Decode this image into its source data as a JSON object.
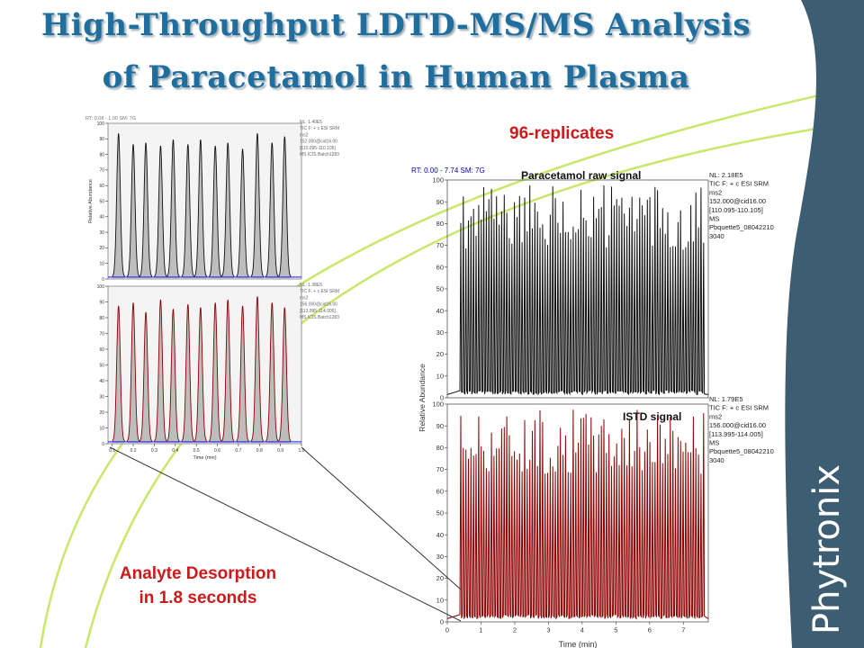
{
  "slide": {
    "title_line1": "High-Throughput LDTD-MS/MS Analysis",
    "title_line2": "of Paracetamol in Human Plasma",
    "replicates_label": "96-replicates",
    "desorption_line1": "Analyte Desorption",
    "desorption_line2": "in 1.8 seconds",
    "brand": "Phytronix",
    "colors": {
      "title": "#1f6e9e",
      "accent_red": "#cc1a1a",
      "brand_panel": "#3d5d73",
      "arc": "#c8e86a",
      "analyte": "#111111",
      "istd": "#8b0000"
    }
  },
  "chart_data": [
    {
      "type": "line",
      "panel": "left-top",
      "header": "RT: 0.08 - 1.00   SM: 7G",
      "info": [
        "NL: 1.40E5",
        "TIC F: + c ESI SRM",
        "ms2",
        "152.000@cid16.00",
        "[110.095-110.105]",
        "MS ICIS Batch1283"
      ],
      "ylabel": "Relative Abundance",
      "ylim": [
        0,
        100
      ],
      "yticks": [
        "0",
        "10",
        "20",
        "30",
        "40",
        "50",
        "60",
        "70",
        "80",
        "90",
        "100"
      ],
      "peaks_rt": [
        0.13,
        0.2,
        0.26,
        0.33,
        0.39,
        0.46,
        0.52,
        0.59,
        0.65,
        0.72,
        0.79,
        0.86,
        0.92
      ],
      "peaks_height": [
        92,
        85,
        86,
        84,
        88,
        85,
        88,
        84,
        86,
        82,
        92,
        86,
        90
      ]
    },
    {
      "type": "line",
      "panel": "left-bottom",
      "info": [
        "NL: 1.38E5",
        "TIC F: + c ESI SRM",
        "ms2",
        "156.000@cid16.00",
        "[113.995-114.005]",
        "MS ICIS Batch1283"
      ],
      "xlabel": "Time (min)",
      "ylim": [
        0,
        100
      ],
      "xlim": [
        0.1,
        1.0
      ],
      "yticks": [
        "0",
        "10",
        "20",
        "30",
        "40",
        "50",
        "60",
        "70",
        "80",
        "90",
        "100"
      ],
      "xticks": [
        "0.1",
        "0.2",
        "0.3",
        "0.4",
        "0.5",
        "0.6",
        "0.7",
        "0.8",
        "0.9",
        "1.0"
      ],
      "peaks_rt": [
        0.13,
        0.2,
        0.26,
        0.33,
        0.39,
        0.46,
        0.52,
        0.59,
        0.65,
        0.72,
        0.79,
        0.86,
        0.92
      ],
      "peaks_height": [
        86,
        88,
        82,
        90,
        84,
        87,
        85,
        88,
        90,
        86,
        92,
        88,
        85
      ]
    },
    {
      "type": "line",
      "panel": "right-top",
      "header": "RT: 0.00 - 7.74   SM: 7G",
      "signal_label": "Paracetamol raw signal",
      "info": [
        "NL: 2.18E5",
        "TIC F: + c ESI SRM",
        "ms2",
        "152.000@cid16.00",
        "[110.095-110.105]",
        "MS",
        "Pbquette5_08042210",
        "3040"
      ],
      "ylabel": "Relative Abundance",
      "ylim": [
        0,
        100
      ],
      "yticks": [
        "0",
        "10",
        "20",
        "30",
        "40",
        "50",
        "60",
        "70",
        "80",
        "90",
        "100"
      ],
      "replicates": 96,
      "rt_start": 0.4,
      "rt_end": 7.6
    },
    {
      "type": "line",
      "panel": "right-bottom",
      "signal_label": "ISTD signal",
      "info": [
        "NL: 1.79E5",
        "TIC F: + c ESI SRM",
        "ms2",
        "156.000@cid16.00",
        "[113.995-114.005]",
        "MS",
        "Pbquette5_08042210",
        "3040"
      ],
      "xlabel": "Time (min)",
      "ylim": [
        0,
        100
      ],
      "xlim": [
        0,
        7.74
      ],
      "yticks": [
        "0",
        "10",
        "20",
        "30",
        "40",
        "50",
        "60",
        "70",
        "80",
        "90",
        "100"
      ],
      "xticks": [
        "0",
        "1",
        "2",
        "3",
        "4",
        "5",
        "6",
        "7"
      ],
      "replicates": 96,
      "rt_start": 0.4,
      "rt_end": 7.6
    }
  ]
}
